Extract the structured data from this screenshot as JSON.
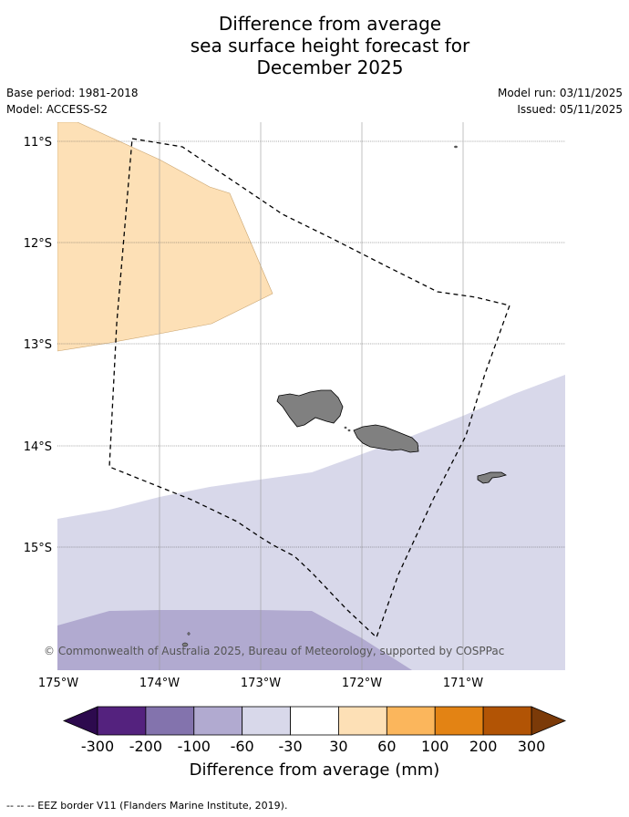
{
  "title": {
    "line1": "Difference from average",
    "line2": "sea surface height forecast for",
    "line3": "December 2025"
  },
  "meta": {
    "base_period": "Base period: 1981-2018",
    "model": "Model: ACCESS-S2",
    "model_run": "Model run: 03/11/2025",
    "issued": "Issued: 05/11/2025"
  },
  "map": {
    "lat_labels": [
      "11°S",
      "12°S",
      "13°S",
      "14°S",
      "15°S"
    ],
    "lon_labels": [
      "175°W",
      "174°W",
      "173°W",
      "172°W",
      "171°W"
    ],
    "copyright": "© Commonwealth of Australia 2025, Bureau of Meteorology, supported by COSPPac",
    "colors": {
      "positive_30_60": "#fde0b6",
      "negative_30_60": "#d8d8ea",
      "negative_60_100": "#b1aad0",
      "land": "#808080"
    }
  },
  "colorbar": {
    "labels": [
      "-300",
      "-200",
      "-100",
      "-60",
      "-30",
      "30",
      "60",
      "100",
      "200",
      "300"
    ],
    "colors": [
      "#2d0a4e",
      "#54227e",
      "#8373ad",
      "#b1aad0",
      "#d8d8ea",
      "#ffffff",
      "#fde0b6",
      "#fbb65c",
      "#e38314",
      "#b25405",
      "#7b3a08"
    ],
    "title": "Difference from average (mm)"
  },
  "footer": "--  --  -- EEZ border V11 (Flanders Marine Institute, 2019)."
}
